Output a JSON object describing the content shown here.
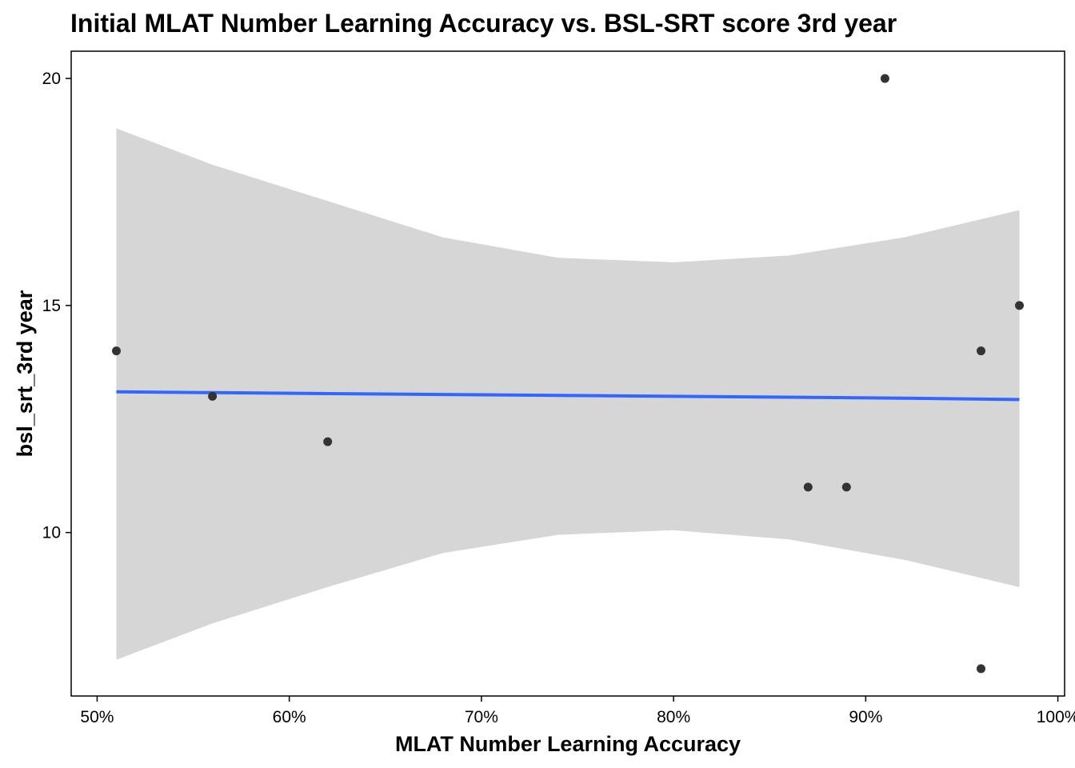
{
  "chart_data": {
    "type": "scatter",
    "title": "Initial MLAT Number Learning Accuracy vs. BSL-SRT score 3rd year",
    "xlabel": "MLAT Number Learning Accuracy",
    "ylabel": "bsl_srt_3rd year",
    "x_tick_values": [
      0.5,
      0.6,
      0.7,
      0.8,
      0.9,
      1.0
    ],
    "x_tick_labels": [
      "50%",
      "60%",
      "70%",
      "80%",
      "90%",
      "100%"
    ],
    "y_tick_values": [
      10,
      15,
      20
    ],
    "y_tick_labels": [
      "10",
      "15",
      "20"
    ],
    "xlim": [
      0.4865,
      1.0035
    ],
    "ylim": [
      6.4,
      20.6
    ],
    "grid": false,
    "points": {
      "x": [
        0.51,
        0.56,
        0.62,
        0.87,
        0.89,
        0.91,
        0.96,
        0.96,
        0.98
      ],
      "y": [
        14,
        13,
        12,
        11,
        11,
        20,
        14,
        7,
        15
      ],
      "color": "#333333"
    },
    "fit": {
      "method": "linear",
      "color": "#3366FF",
      "ribbon_color": "#D6D6D6",
      "x": [
        0.51,
        0.56,
        0.62,
        0.68,
        0.74,
        0.8,
        0.86,
        0.92,
        0.98
      ],
      "y": [
        13.1,
        13.08,
        13.06,
        13.04,
        13.02,
        13.0,
        12.98,
        12.96,
        12.93
      ],
      "lower": [
        7.2,
        8.0,
        8.8,
        9.55,
        9.95,
        10.05,
        9.85,
        9.4,
        8.8
      ],
      "upper": [
        18.9,
        18.1,
        17.3,
        16.5,
        16.05,
        15.95,
        16.1,
        16.5,
        17.1
      ]
    }
  }
}
